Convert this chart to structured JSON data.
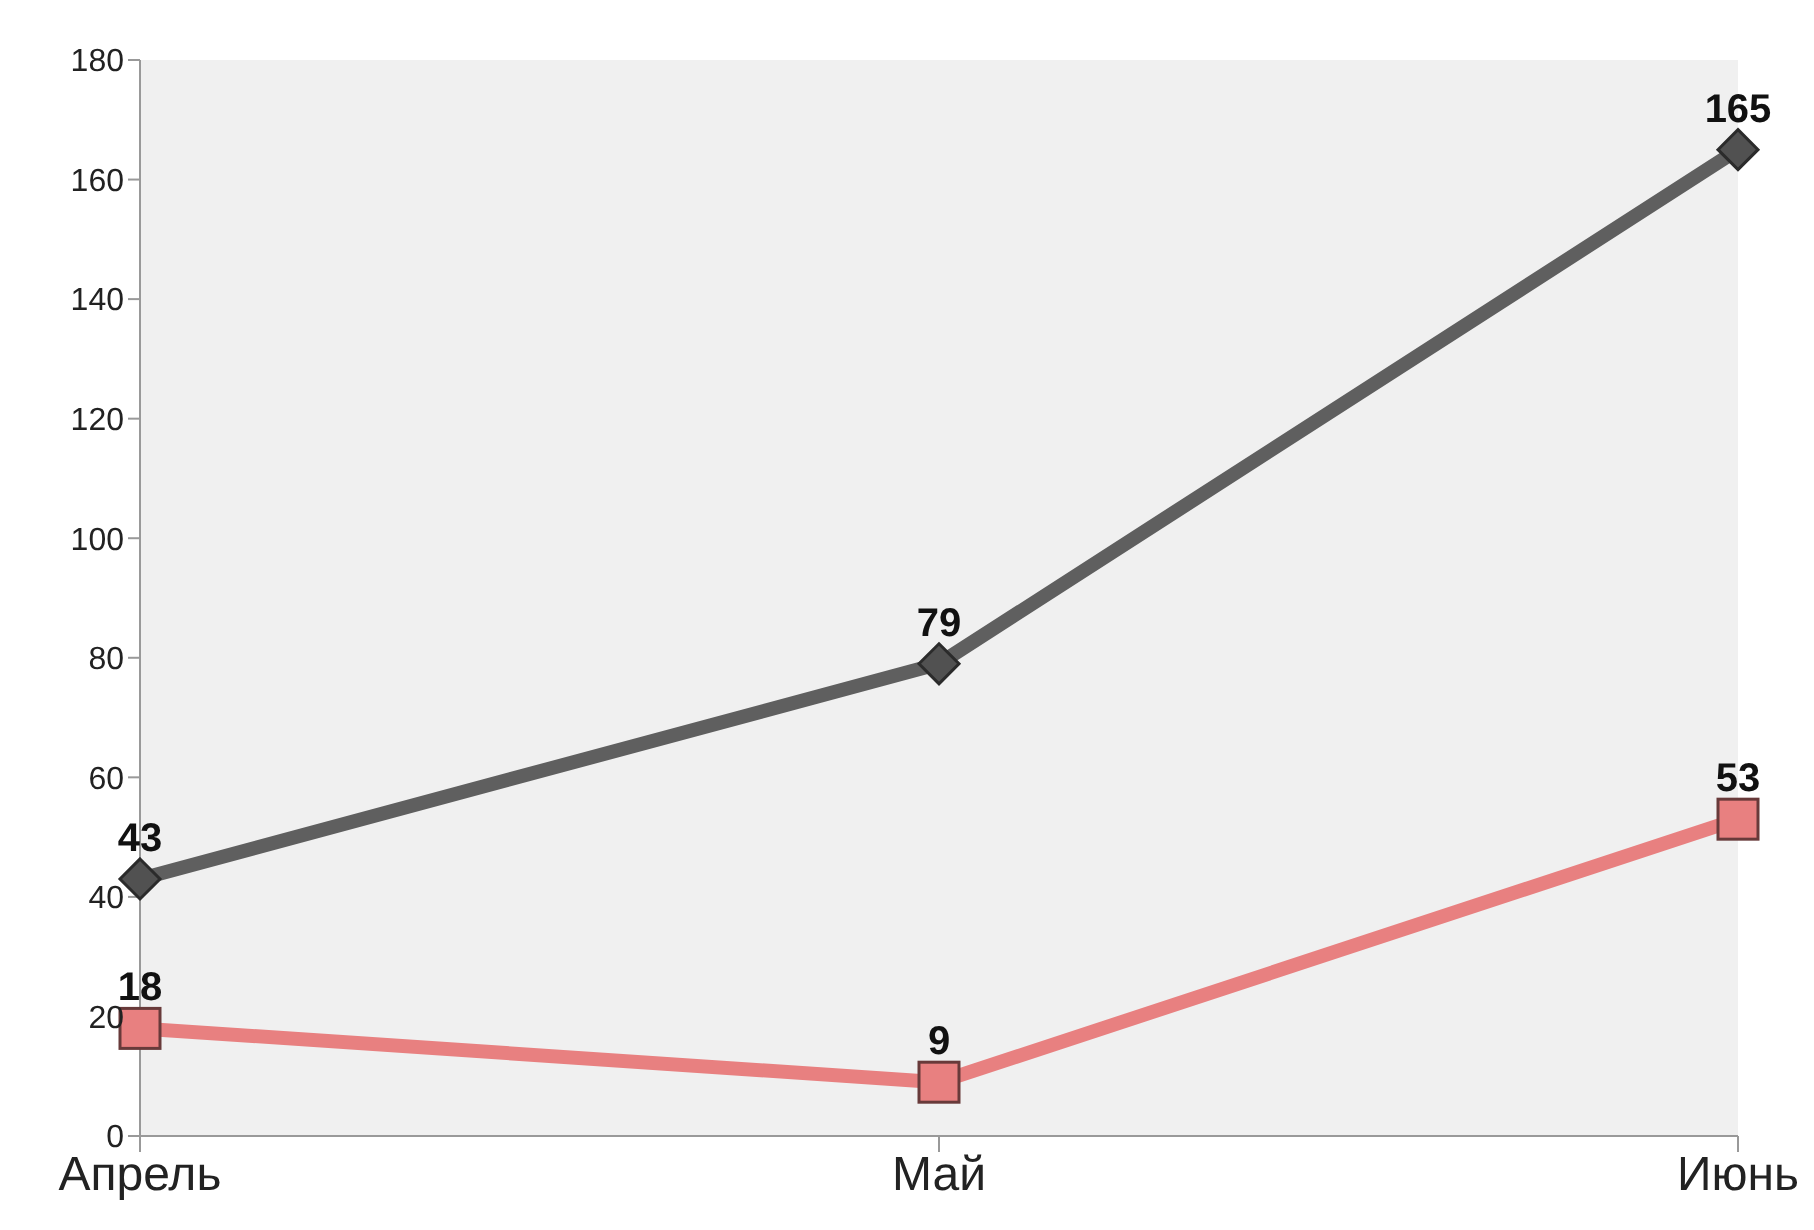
{
  "chart_data": {
    "type": "line",
    "categories": [
      "Апрель",
      "Май",
      "Июнь"
    ],
    "series": [
      {
        "color": "#5f5f5f",
        "values": [
          43,
          79,
          165
        ],
        "marker": "diamond"
      },
      {
        "color": "#e88080",
        "values": [
          18,
          9,
          53
        ],
        "marker": "square"
      }
    ],
    "ylim": [
      0,
      180
    ],
    "yticks": [
      0,
      20,
      40,
      60,
      80,
      100,
      120,
      140,
      160,
      180
    ],
    "grid": false,
    "legend": false,
    "data_labels": true,
    "line_style": "solid"
  }
}
